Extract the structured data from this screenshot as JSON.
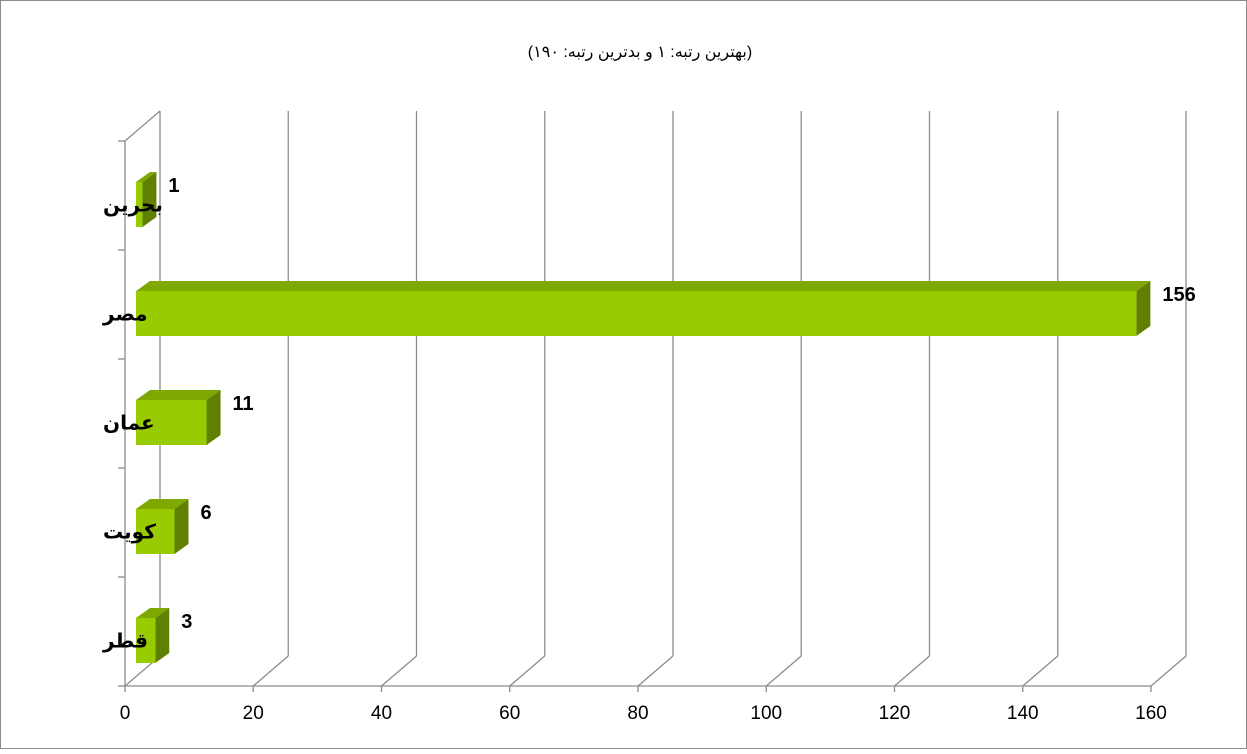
{
  "chart_data": {
    "type": "bar",
    "orientation": "horizontal",
    "subtitle": "(بهترین رتبه: ۱ و بدترین رتبه: ۱۹۰)",
    "categories": [
      "بحرین",
      "مصر",
      "عمان",
      "کویت",
      "قطر"
    ],
    "values": [
      1,
      156,
      11,
      6,
      3
    ],
    "xlim": [
      0,
      160
    ],
    "x_ticks": [
      "0",
      "20",
      "40",
      "60",
      "80",
      "100",
      "120",
      "140",
      "160"
    ],
    "grid": true,
    "legend": "none",
    "colors": {
      "bar_front": "#99CC00",
      "bar_top": "#7FA800",
      "bar_side": "#5F8000",
      "grid": "#8C8C8C",
      "frame": "#8C8C8C"
    }
  }
}
